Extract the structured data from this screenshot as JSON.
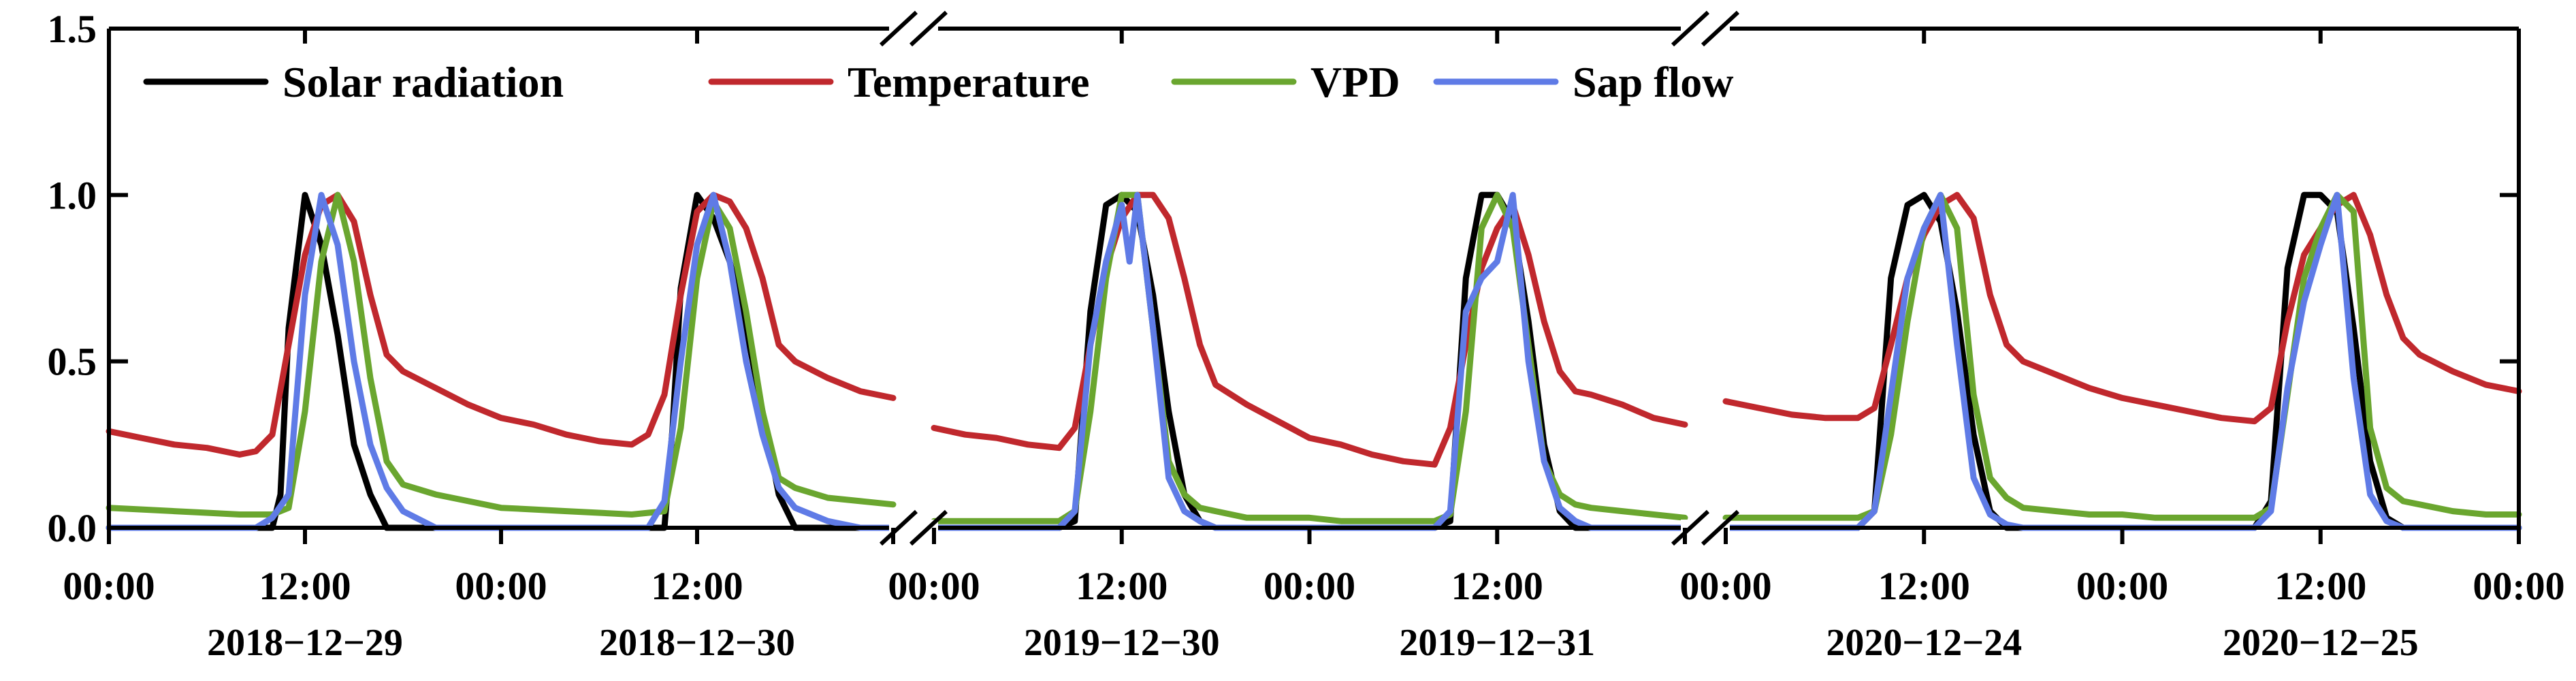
{
  "chart_data": {
    "type": "line",
    "title": "",
    "xlabel": "",
    "ylabel": "",
    "ylim": [
      0,
      1.5
    ],
    "y_ticks": [
      "0.0",
      "0.5",
      "1.0",
      "1.5"
    ],
    "legend_position": "top-left",
    "axis_break": true,
    "x_hours": [
      0,
      12,
      24,
      36,
      48
    ],
    "segments": [
      {
        "x_tick_labels": [
          "00:00",
          "12:00",
          "00:00",
          "12:00"
        ],
        "date_labels": [
          "2018−12−29",
          "2018−12−30"
        ],
        "series": [
          {
            "name": "Solar radiation",
            "color": "#000000",
            "x": [
              0,
              8,
              10,
              10.5,
              11,
              12,
              13,
              14,
              15,
              16,
              17,
              18,
              20,
              22,
              24,
              32,
              34,
              34.5,
              35,
              36,
              37,
              38,
              39,
              40,
              41,
              42,
              44,
              46,
              48
            ],
            "y": [
              0,
              0,
              0,
              0.1,
              0.6,
              1.0,
              0.85,
              0.58,
              0.25,
              0.1,
              0,
              0,
              0,
              0,
              0,
              0,
              0,
              0.3,
              0.72,
              1.0,
              0.93,
              0.8,
              0.6,
              0.35,
              0.1,
              0,
              0,
              0,
              0
            ]
          },
          {
            "name": "Temperature",
            "color": "#c0282d",
            "x": [
              0,
              2,
              4,
              6,
              8,
              9,
              10,
              11,
              12,
              13,
              14,
              15,
              16,
              17,
              18,
              20,
              22,
              24,
              26,
              28,
              30,
              32,
              33,
              34,
              35,
              36,
              37,
              38,
              39,
              40,
              41,
              42,
              44,
              46,
              48
            ],
            "y": [
              0.29,
              0.27,
              0.25,
              0.24,
              0.22,
              0.23,
              0.28,
              0.55,
              0.82,
              0.97,
              1.0,
              0.92,
              0.7,
              0.52,
              0.47,
              0.42,
              0.37,
              0.33,
              0.31,
              0.28,
              0.26,
              0.25,
              0.28,
              0.4,
              0.7,
              0.95,
              1.0,
              0.98,
              0.9,
              0.75,
              0.55,
              0.5,
              0.45,
              0.41,
              0.39
            ]
          },
          {
            "name": "VPD",
            "color": "#6aa62f",
            "x": [
              0,
              2,
              4,
              6,
              8,
              10,
              11,
              12,
              13,
              14,
              15,
              16,
              17,
              18,
              20,
              22,
              24,
              26,
              28,
              30,
              32,
              34,
              35,
              36,
              37,
              38,
              39,
              40,
              41,
              42,
              44,
              46,
              48
            ],
            "y": [
              0.06,
              0.055,
              0.05,
              0.045,
              0.04,
              0.04,
              0.06,
              0.35,
              0.8,
              1.0,
              0.8,
              0.45,
              0.2,
              0.13,
              0.1,
              0.08,
              0.06,
              0.055,
              0.05,
              0.045,
              0.04,
              0.05,
              0.3,
              0.75,
              0.98,
              0.9,
              0.65,
              0.35,
              0.15,
              0.12,
              0.09,
              0.08,
              0.07
            ]
          },
          {
            "name": "Sap flow",
            "color": "#5f7be6",
            "x": [
              0,
              8,
              9,
              10,
              11,
              12,
              13,
              14,
              15,
              16,
              17,
              18,
              20,
              22,
              24,
              32,
              33,
              34,
              35,
              36,
              37,
              38,
              39,
              40,
              41,
              42,
              44,
              46,
              48
            ],
            "y": [
              0,
              0,
              0,
              0.03,
              0.1,
              0.7,
              1.0,
              0.85,
              0.5,
              0.25,
              0.12,
              0.05,
              0,
              0,
              0,
              0,
              0,
              0.08,
              0.5,
              0.85,
              1.0,
              0.8,
              0.5,
              0.28,
              0.12,
              0.06,
              0.02,
              0,
              0
            ]
          }
        ]
      },
      {
        "x_tick_labels": [
          "00:00",
          "12:00",
          "00:00",
          "12:00"
        ],
        "date_labels": [
          "2019−12−30",
          "2019−12−31"
        ],
        "series": [
          {
            "name": "Solar radiation",
            "color": "#000000",
            "x": [
              0,
              8,
              9,
              10,
              11,
              12,
              13,
              14,
              15,
              16,
              17,
              18,
              20,
              22,
              24,
              32,
              33,
              34,
              35,
              36,
              37,
              38,
              39,
              40,
              41,
              42,
              44,
              46,
              48
            ],
            "y": [
              0,
              0,
              0.02,
              0.65,
              0.97,
              1.0,
              0.95,
              0.7,
              0.35,
              0.1,
              0.02,
              0,
              0,
              0,
              0,
              0,
              0.02,
              0.75,
              1.0,
              1.0,
              0.92,
              0.62,
              0.25,
              0.05,
              0,
              0,
              0,
              0,
              0
            ]
          },
          {
            "name": "Temperature",
            "color": "#c0282d",
            "x": [
              0,
              2,
              4,
              6,
              8,
              9,
              10,
              11,
              12,
              13,
              14,
              15,
              16,
              17,
              18,
              20,
              22,
              24,
              26,
              28,
              30,
              32,
              33,
              34,
              35,
              36,
              37,
              38,
              39,
              40,
              41,
              42,
              44,
              46,
              48
            ],
            "y": [
              0.3,
              0.28,
              0.27,
              0.25,
              0.24,
              0.3,
              0.55,
              0.78,
              0.93,
              1.0,
              1.0,
              0.93,
              0.75,
              0.55,
              0.43,
              0.37,
              0.32,
              0.27,
              0.25,
              0.22,
              0.2,
              0.19,
              0.3,
              0.55,
              0.78,
              0.9,
              0.97,
              0.82,
              0.62,
              0.47,
              0.41,
              0.4,
              0.37,
              0.33,
              0.31
            ]
          },
          {
            "name": "VPD",
            "color": "#6aa62f",
            "x": [
              0,
              2,
              4,
              6,
              8,
              9,
              10,
              11,
              12,
              13,
              14,
              15,
              16,
              17,
              18,
              20,
              22,
              24,
              26,
              28,
              30,
              32,
              33,
              34,
              35,
              36,
              37,
              38,
              39,
              40,
              41,
              42,
              44,
              46,
              48
            ],
            "y": [
              0.02,
              0.02,
              0.02,
              0.02,
              0.02,
              0.05,
              0.35,
              0.75,
              1.0,
              1.0,
              0.6,
              0.2,
              0.1,
              0.06,
              0.05,
              0.03,
              0.03,
              0.03,
              0.02,
              0.02,
              0.02,
              0.02,
              0.04,
              0.35,
              0.9,
              1.0,
              0.9,
              0.55,
              0.2,
              0.1,
              0.07,
              0.06,
              0.05,
              0.04,
              0.03
            ]
          },
          {
            "name": "Sap flow",
            "color": "#5f7be6",
            "x": [
              0,
              8,
              9,
              10,
              11,
              12,
              12.5,
              13,
              14,
              15,
              16,
              17,
              18,
              20,
              22,
              24,
              32,
              33,
              34,
              35,
              36,
              37,
              38,
              39,
              40,
              41,
              42,
              44,
              46,
              48
            ],
            "y": [
              0,
              0,
              0.05,
              0.55,
              0.8,
              0.97,
              0.8,
              1.0,
              0.6,
              0.15,
              0.05,
              0.02,
              0,
              0,
              0,
              0,
              0,
              0.05,
              0.65,
              0.75,
              0.8,
              1.0,
              0.5,
              0.2,
              0.06,
              0.02,
              0,
              0,
              0,
              0
            ]
          }
        ]
      },
      {
        "x_tick_labels": [
          "00:00",
          "12:00",
          "00:00",
          "12:00",
          "00:00"
        ],
        "date_labels": [
          "2020−12−24",
          "2020−12−25"
        ],
        "series": [
          {
            "name": "Solar radiation",
            "color": "#000000",
            "x": [
              0,
              8,
              9,
              10,
              11,
              12,
              13,
              14,
              15,
              16,
              17,
              18,
              20,
              22,
              24,
              32,
              33,
              34,
              35,
              36,
              37,
              38,
              39,
              40,
              41,
              42,
              44,
              46,
              48
            ],
            "y": [
              0,
              0,
              0.05,
              0.75,
              0.97,
              1.0,
              0.92,
              0.65,
              0.28,
              0.05,
              0,
              0,
              0,
              0,
              0,
              0,
              0.08,
              0.78,
              1.0,
              1.0,
              0.95,
              0.6,
              0.2,
              0.03,
              0,
              0,
              0,
              0,
              0
            ]
          },
          {
            "name": "Temperature",
            "color": "#c0282d",
            "x": [
              0,
              2,
              4,
              6,
              8,
              9,
              10,
              11,
              12,
              13,
              14,
              15,
              16,
              17,
              18,
              20,
              22,
              24,
              26,
              28,
              30,
              32,
              33,
              34,
              35,
              36,
              37,
              38,
              39,
              40,
              41,
              42,
              44,
              46,
              48
            ],
            "y": [
              0.38,
              0.36,
              0.34,
              0.33,
              0.33,
              0.36,
              0.55,
              0.75,
              0.88,
              0.97,
              1.0,
              0.93,
              0.7,
              0.55,
              0.5,
              0.46,
              0.42,
              0.39,
              0.37,
              0.35,
              0.33,
              0.32,
              0.36,
              0.62,
              0.82,
              0.9,
              0.97,
              1.0,
              0.88,
              0.7,
              0.57,
              0.52,
              0.47,
              0.43,
              0.41
            ]
          },
          {
            "name": "VPD",
            "color": "#6aa62f",
            "x": [
              0,
              2,
              4,
              6,
              8,
              9,
              10,
              11,
              12,
              13,
              14,
              15,
              16,
              17,
              18,
              20,
              22,
              24,
              26,
              28,
              30,
              32,
              33,
              34,
              35,
              36,
              37,
              38,
              39,
              40,
              41,
              42,
              44,
              46,
              48
            ],
            "y": [
              0.03,
              0.03,
              0.03,
              0.03,
              0.03,
              0.05,
              0.28,
              0.62,
              0.9,
              1.0,
              0.9,
              0.4,
              0.15,
              0.09,
              0.06,
              0.05,
              0.04,
              0.04,
              0.03,
              0.03,
              0.03,
              0.03,
              0.06,
              0.4,
              0.75,
              0.9,
              1.0,
              0.95,
              0.3,
              0.12,
              0.08,
              0.07,
              0.05,
              0.04,
              0.04
            ]
          },
          {
            "name": "Sap flow",
            "color": "#5f7be6",
            "x": [
              0,
              8,
              9,
              10,
              11,
              12,
              13,
              14,
              15,
              16,
              17,
              18,
              20,
              22,
              24,
              32,
              33,
              34,
              35,
              36,
              37,
              38,
              39,
              40,
              41,
              42,
              44,
              46,
              48
            ],
            "y": [
              0,
              0,
              0.05,
              0.4,
              0.75,
              0.9,
              1.0,
              0.55,
              0.15,
              0.04,
              0.01,
              0,
              0,
              0,
              0,
              0,
              0.05,
              0.42,
              0.68,
              0.85,
              1.0,
              0.45,
              0.1,
              0.02,
              0,
              0,
              0,
              0,
              0
            ]
          }
        ]
      }
    ],
    "legend": [
      {
        "name": "Solar radiation",
        "color": "#000000"
      },
      {
        "name": "Temperature",
        "color": "#c0282d"
      },
      {
        "name": "VPD",
        "color": "#6aa62f"
      },
      {
        "name": "Sap flow",
        "color": "#5f7be6"
      }
    ]
  }
}
